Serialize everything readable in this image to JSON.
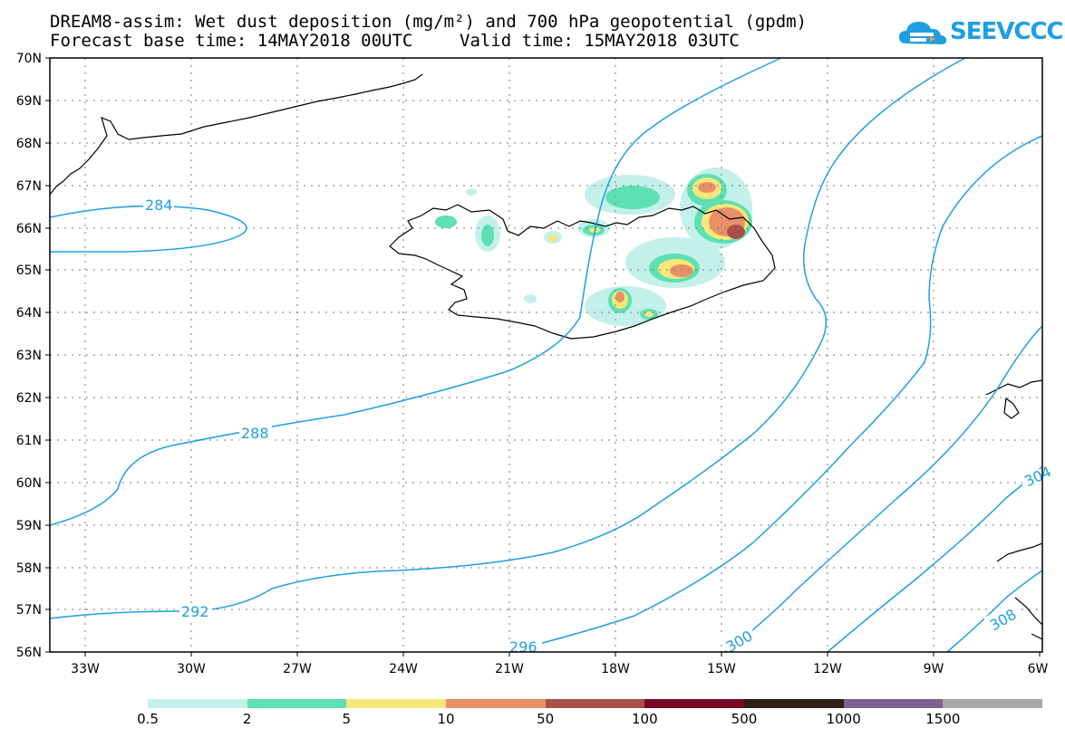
{
  "title_line1": "DREAM8-assim: Wet dust deposition (mg/m²) and 700 hPa geopotential (gpdm)",
  "forecast_base": "Forecast base time: 14MAY2018 00UTC",
  "valid_time": "Valid time: 15MAY2018 03UTC",
  "logo_text": "SEEVCCC",
  "logo_icon": "cloud-icon",
  "lat_labels": [
    "70N",
    "69N",
    "68N",
    "67N",
    "66N",
    "65N",
    "64N",
    "63N",
    "62N",
    "61N",
    "60N",
    "59N",
    "58N",
    "57N",
    "56N"
  ],
  "lon_labels": [
    "33W",
    "30W",
    "27W",
    "24W",
    "21W",
    "18W",
    "15W",
    "12W",
    "9W",
    "6W"
  ],
  "contour_labels": [
    "284",
    "288",
    "292",
    "296",
    "300",
    "304",
    "308"
  ],
  "contour_color": "#1e9fe0",
  "legend": {
    "colors": [
      "#c4f0ea",
      "#5ce0b4",
      "#f5e878",
      "#e89068",
      "#a85048",
      "#780828",
      "#302018",
      "#806090",
      "#a8a8a8"
    ],
    "labels": [
      "0.5",
      "2",
      "5",
      "10",
      "50",
      "100",
      "500",
      "1000",
      "1500"
    ]
  }
}
